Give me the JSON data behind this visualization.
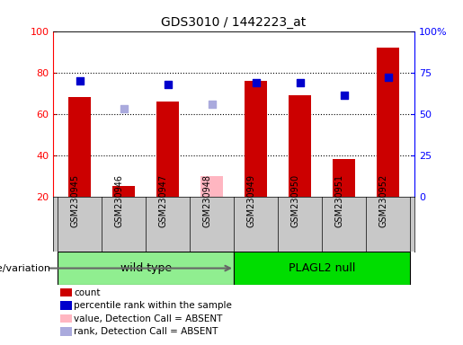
{
  "title": "GDS3010 / 1442223_at",
  "samples": [
    "GSM230945",
    "GSM230946",
    "GSM230947",
    "GSM230948",
    "GSM230949",
    "GSM230950",
    "GSM230951",
    "GSM230952"
  ],
  "count_values": [
    68,
    25,
    66,
    null,
    76,
    69,
    38,
    92
  ],
  "count_absent": [
    null,
    null,
    null,
    30,
    null,
    null,
    null,
    null
  ],
  "rank_values": [
    70,
    null,
    68,
    null,
    69,
    69,
    61,
    72
  ],
  "rank_absent": [
    null,
    53,
    null,
    56,
    null,
    null,
    null,
    null
  ],
  "ylim_left": [
    20,
    100
  ],
  "ylim_right": [
    0,
    100
  ],
  "yticks_left": [
    20,
    40,
    60,
    80,
    100
  ],
  "yticks_right": [
    0,
    25,
    50,
    75,
    100
  ],
  "ytick_labels_left": [
    "20",
    "40",
    "60",
    "80",
    "100"
  ],
  "ytick_labels_right": [
    "0",
    "25",
    "50",
    "75",
    "100%"
  ],
  "groups": [
    {
      "label": "wild type",
      "indices": [
        0,
        1,
        2,
        3
      ],
      "color": "#90EE90"
    },
    {
      "label": "PLAGL2 null",
      "indices": [
        4,
        5,
        6,
        7
      ],
      "color": "#00DD00"
    }
  ],
  "bar_color_present": "#CC0000",
  "bar_color_absent": "#FFB6C1",
  "square_color_present": "#0000CC",
  "square_color_absent": "#AAAADD",
  "bar_width": 0.5,
  "square_size": 40,
  "background_color": "#FFFFFF",
  "plot_bg_color": "#FFFFFF",
  "tick_bg_color": "#C8C8C8",
  "genotype_label": "genotype/variation",
  "legend_items": [
    {
      "label": "count",
      "color": "#CC0000"
    },
    {
      "label": "percentile rank within the sample",
      "color": "#0000CC"
    },
    {
      "label": "value, Detection Call = ABSENT",
      "color": "#FFB6C1"
    },
    {
      "label": "rank, Detection Call = ABSENT",
      "color": "#AAAADD"
    }
  ]
}
